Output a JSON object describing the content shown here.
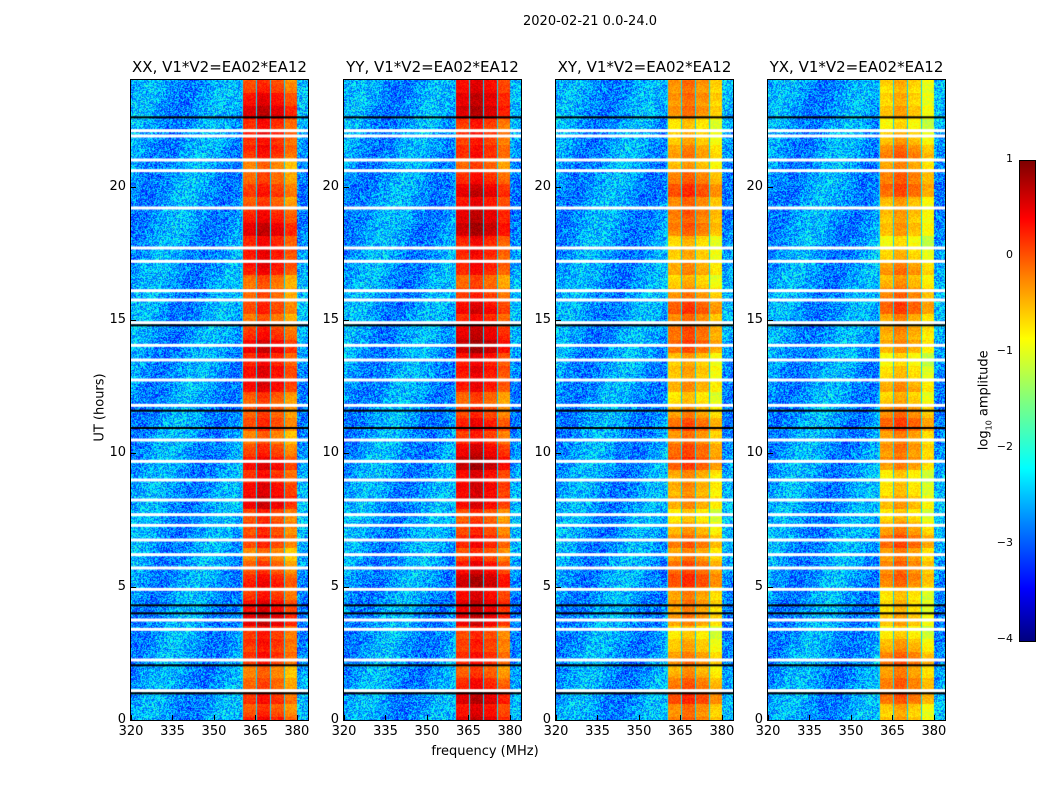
{
  "suptitle": "2020-02-21 0.0-24.0",
  "chart_data": {
    "type": "heatmap",
    "panels": [
      {
        "title": "XX, V1*V2=EA02*EA12",
        "band_level": 0.1
      },
      {
        "title": "YY, V1*V2=EA02*EA12",
        "band_level": 0.25
      },
      {
        "title": "XY, V1*V2=EA02*EA12",
        "band_level": -0.4
      },
      {
        "title": "YX, V1*V2=EA02*EA12",
        "band_level": -0.5
      }
    ],
    "xlabel": "frequency (MHz)",
    "ylabel": "UT (hours)",
    "xlim": [
      320,
      384
    ],
    "ylim": [
      0,
      24
    ],
    "xticks": [
      "320",
      "335",
      "350",
      "365",
      "380"
    ],
    "xtick_values": [
      320,
      335,
      350,
      365,
      380
    ],
    "yticks": [
      "0",
      "5",
      "10",
      "15",
      "20"
    ],
    "ytick_values": [
      0,
      5,
      10,
      15,
      20
    ],
    "bright_band_mhz": [
      360,
      380
    ],
    "background_level": -2.6,
    "flagged_rows_white_hours": [
      22.1,
      21.9,
      21.0,
      20.6,
      19.2,
      17.7,
      17.2,
      16.1,
      15.75,
      14.9,
      14.05,
      13.5,
      12.75,
      11.8,
      10.5,
      9.7,
      9.0,
      8.25,
      7.7,
      7.3,
      6.75,
      6.2,
      5.7,
      4.9,
      3.75,
      3.4,
      2.25,
      1.1
    ],
    "flagged_rows_black_hours": [
      22.6,
      14.8,
      11.6,
      10.95,
      4.3,
      4.0,
      2.05,
      1.0
    ],
    "colorbar": {
      "label": "log10 amplitude",
      "label_main": "log",
      "label_sub": "10",
      "label_rest": " amplitude",
      "colormap": "jet",
      "range": [
        -4,
        1
      ],
      "ticks": [
        "1",
        "0",
        "−1",
        "−2",
        "−3",
        "−4"
      ],
      "tick_values": [
        1,
        0,
        -1,
        -2,
        -3,
        -4
      ]
    }
  }
}
